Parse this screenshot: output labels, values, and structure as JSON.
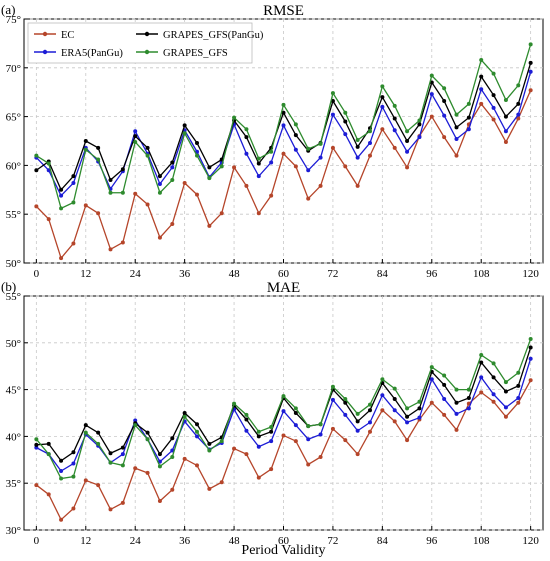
{
  "xlabel": "Period Validity",
  "x_ticks": [
    0,
    12,
    24,
    36,
    48,
    60,
    72,
    84,
    96,
    108,
    120
  ],
  "series_styles": [
    {
      "name": "EC",
      "color": "#b5452a"
    },
    {
      "name": "ERA5(PanGu)",
      "color": "#1c1cd6"
    },
    {
      "name": "GRAPES_GFS(PanGu)",
      "color": "#000000"
    },
    {
      "name": "GRAPES_GFS",
      "color": "#2e8b2e"
    }
  ],
  "chart_data": [
    {
      "type": "line",
      "panel_label": "(a)",
      "title": "RMSE",
      "xlim": [
        -3,
        123
      ],
      "ylim": [
        50,
        75
      ],
      "y_ticks": [
        "50°",
        "55°",
        "60°",
        "65°",
        "70°",
        "75°"
      ],
      "y_tick_values": [
        50,
        55,
        60,
        65,
        70,
        75
      ],
      "legend": "top-left",
      "x": [
        0,
        3,
        6,
        9,
        12,
        15,
        18,
        21,
        24,
        27,
        30,
        33,
        36,
        39,
        42,
        45,
        48,
        51,
        54,
        57,
        60,
        63,
        66,
        69,
        72,
        75,
        78,
        81,
        84,
        87,
        90,
        93,
        96,
        99,
        102,
        105,
        108,
        111,
        114,
        117,
        120
      ],
      "series": [
        {
          "name": "EC",
          "values": [
            55.8,
            54.5,
            50.5,
            52.0,
            55.9,
            55.1,
            51.4,
            52.1,
            57.1,
            56.0,
            52.6,
            54.0,
            58.2,
            57.0,
            53.8,
            55.1,
            59.8,
            57.9,
            55.1,
            56.9,
            61.2,
            59.9,
            56.6,
            57.9,
            61.8,
            59.9,
            57.9,
            61.0,
            63.7,
            61.8,
            59.8,
            63.0,
            65.0,
            62.9,
            61.0,
            64.2,
            66.3,
            64.7,
            62.4,
            64.8,
            67.7
          ]
        },
        {
          "name": "ERA5(PanGu)",
          "values": [
            60.8,
            59.5,
            56.9,
            58.2,
            61.8,
            60.4,
            57.6,
            59.4,
            63.5,
            61.2,
            58.1,
            59.8,
            63.6,
            61.4,
            58.8,
            60.3,
            64.2,
            61.2,
            58.9,
            60.3,
            64.1,
            61.6,
            59.5,
            60.8,
            65.2,
            63.2,
            60.8,
            62.3,
            66.0,
            63.6,
            61.4,
            62.9,
            67.3,
            65.1,
            62.7,
            63.7,
            67.8,
            65.9,
            63.5,
            65.2,
            69.6
          ]
        },
        {
          "name": "GRAPES_GFS(PanGu)",
          "values": [
            59.5,
            60.4,
            57.5,
            58.9,
            62.5,
            61.8,
            58.5,
            59.6,
            63.0,
            61.8,
            58.9,
            60.3,
            64.1,
            62.3,
            59.8,
            60.6,
            64.6,
            62.9,
            60.2,
            61.8,
            65.4,
            63.1,
            61.5,
            62.3,
            66.6,
            64.5,
            61.9,
            63.8,
            67.0,
            64.8,
            62.5,
            64.2,
            68.5,
            66.6,
            63.9,
            64.9,
            69.1,
            67.2,
            65.0,
            66.3,
            70.5
          ]
        },
        {
          "name": "GRAPES_GFS",
          "values": [
            61.0,
            60.2,
            55.6,
            56.2,
            61.6,
            60.6,
            57.2,
            57.2,
            62.4,
            61.0,
            57.2,
            58.5,
            63.3,
            61.0,
            58.7,
            59.9,
            64.9,
            63.7,
            60.7,
            61.4,
            66.2,
            64.2,
            61.7,
            62.2,
            67.4,
            65.4,
            62.6,
            63.5,
            68.1,
            66.1,
            63.5,
            64.6,
            69.2,
            67.9,
            65.2,
            66.3,
            70.8,
            69.4,
            66.7,
            68.2,
            72.4
          ]
        }
      ]
    },
    {
      "type": "line",
      "panel_label": "(b)",
      "title": "MAE",
      "xlim": [
        -3,
        123
      ],
      "ylim": [
        30,
        55
      ],
      "y_ticks": [
        "30°",
        "35°",
        "40°",
        "45°",
        "50°",
        "55°"
      ],
      "y_tick_values": [
        30,
        35,
        40,
        45,
        50,
        55
      ],
      "x": [
        0,
        3,
        6,
        9,
        12,
        15,
        18,
        21,
        24,
        27,
        30,
        33,
        36,
        39,
        42,
        45,
        48,
        51,
        54,
        57,
        60,
        63,
        66,
        69,
        72,
        75,
        78,
        81,
        84,
        87,
        90,
        93,
        96,
        99,
        102,
        105,
        108,
        111,
        114,
        117,
        120
      ],
      "series": [
        {
          "name": "EC",
          "values": [
            34.8,
            33.8,
            31.1,
            32.3,
            35.3,
            34.8,
            32.2,
            32.9,
            36.6,
            36.1,
            33.1,
            34.3,
            37.6,
            36.9,
            34.4,
            35.1,
            38.7,
            38.1,
            35.6,
            36.5,
            40.1,
            39.5,
            37.0,
            37.8,
            40.8,
            39.6,
            38.1,
            40.5,
            42.8,
            41.6,
            39.6,
            41.8,
            43.6,
            42.3,
            40.7,
            43.5,
            44.7,
            43.7,
            42.1,
            43.6,
            46.0
          ]
        },
        {
          "name": "ERA5(PanGu)",
          "values": [
            38.8,
            38.1,
            36.3,
            37.1,
            40.2,
            39.0,
            37.2,
            38.1,
            41.7,
            39.7,
            37.3,
            38.5,
            41.6,
            40.0,
            38.6,
            39.3,
            42.9,
            40.6,
            38.9,
            39.5,
            42.7,
            41.2,
            39.7,
            40.2,
            43.9,
            42.3,
            40.6,
            41.5,
            44.4,
            42.8,
            41.5,
            42.0,
            46.1,
            44.0,
            42.4,
            43.0,
            46.3,
            44.5,
            43.1,
            44.1,
            48.3
          ]
        },
        {
          "name": "GRAPES_GFS(PanGu)",
          "values": [
            39.1,
            39.2,
            37.4,
            38.3,
            41.2,
            40.4,
            38.2,
            38.8,
            41.4,
            40.4,
            38.1,
            39.8,
            42.5,
            41.3,
            39.2,
            39.9,
            43.3,
            41.8,
            40.0,
            40.5,
            44.1,
            42.5,
            41.1,
            41.3,
            45.0,
            43.6,
            41.6,
            42.8,
            45.7,
            44.0,
            42.1,
            43.0,
            46.9,
            45.5,
            43.6,
            44.1,
            47.9,
            46.3,
            44.8,
            45.4,
            49.5
          ]
        },
        {
          "name": "GRAPES_GFS",
          "values": [
            39.7,
            38.1,
            35.5,
            35.7,
            40.4,
            39.2,
            37.2,
            36.9,
            41.2,
            39.7,
            36.8,
            37.8,
            42.1,
            40.5,
            38.5,
            39.5,
            43.5,
            42.3,
            40.5,
            41.0,
            44.3,
            43.0,
            41.1,
            41.3,
            45.3,
            44.0,
            42.4,
            43.4,
            46.1,
            45.1,
            43.0,
            43.7,
            47.4,
            46.5,
            45.0,
            45.0,
            48.7,
            47.8,
            45.8,
            46.8,
            50.4
          ]
        }
      ]
    }
  ]
}
